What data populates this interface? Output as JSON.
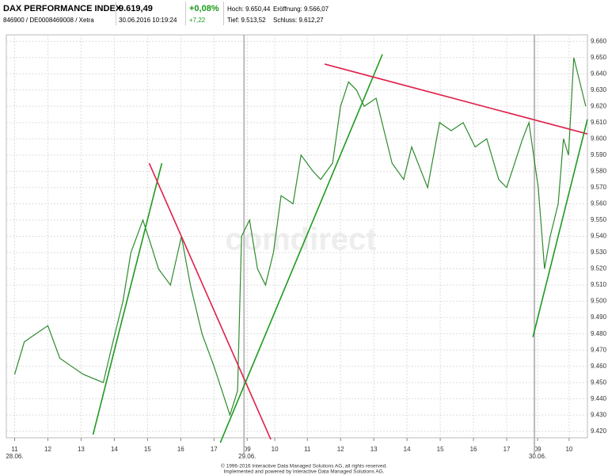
{
  "header": {
    "name": "DAX PERFORMANCE INDEX",
    "isin": "846900 / DE0008469008 / Xetra",
    "price": "9.619,49",
    "timestamp": "30.06.2016 10:19:24",
    "change_pct": "+0,08%",
    "change_abs": "+7,22",
    "high": "Hoch: 9.650,44",
    "open": "Eröffnung: 9.566,07",
    "low": "Tief: 9.513,52",
    "close": "Schluss: 9.612,27"
  },
  "chart_data": {
    "type": "line",
    "watermark": "comdirect",
    "footer": [
      "© 1996-2016 Interactive Data Managed Solutions AG, all rights reserved.",
      "Implemented and powered by Interactive Data Managed Solutions AG."
    ],
    "xlim": [
      -0.25,
      17.24
    ],
    "ylim": [
      9416,
      9664
    ],
    "xticks": [
      {
        "value": 0,
        "label": "11"
      },
      {
        "value": 1,
        "label": "12"
      },
      {
        "value": 2,
        "label": "13"
      },
      {
        "value": 3,
        "label": "14"
      },
      {
        "value": 4,
        "label": "15"
      },
      {
        "value": 5,
        "label": "16"
      },
      {
        "value": 6,
        "label": "17"
      },
      {
        "value": 7,
        "label": "09"
      },
      {
        "value": 7.83,
        "label": "10"
      },
      {
        "value": 8.81,
        "label": "11"
      },
      {
        "value": 9.81,
        "label": "12"
      },
      {
        "value": 10.81,
        "label": "13"
      },
      {
        "value": 11.81,
        "label": "14"
      },
      {
        "value": 12.81,
        "label": "15"
      },
      {
        "value": 13.81,
        "label": "16"
      },
      {
        "value": 14.81,
        "label": "17"
      },
      {
        "value": 15.74,
        "label": "09"
      },
      {
        "value": 16.69,
        "label": "10"
      }
    ],
    "date_labels": [
      {
        "value": 0,
        "label": "28.06."
      },
      {
        "value": 7,
        "label": "29.06."
      },
      {
        "value": 15.74,
        "label": "30.06."
      }
    ],
    "yticks": [
      {
        "value": 9420,
        "label": "9.420"
      },
      {
        "value": 9430,
        "label": "9.430"
      },
      {
        "value": 9440,
        "label": "9.440"
      },
      {
        "value": 9450,
        "label": "9.450"
      },
      {
        "value": 9460,
        "label": "9.460"
      },
      {
        "value": 9470,
        "label": "9.470"
      },
      {
        "value": 9480,
        "label": "9.480"
      },
      {
        "value": 9490,
        "label": "9.490"
      },
      {
        "value": 9500,
        "label": "9.500"
      },
      {
        "value": 9510,
        "label": "9.510"
      },
      {
        "value": 9520,
        "label": "9.520"
      },
      {
        "value": 9530,
        "label": "9.530"
      },
      {
        "value": 9540,
        "label": "9.540"
      },
      {
        "value": 9550,
        "label": "9.550"
      },
      {
        "value": 9560,
        "label": "9.560"
      },
      {
        "value": 9570,
        "label": "9.570"
      },
      {
        "value": 9580,
        "label": "9.580"
      },
      {
        "value": 9590,
        "label": "9.590"
      },
      {
        "value": 9600,
        "label": "9.600"
      },
      {
        "value": 9610,
        "label": "9.610"
      },
      {
        "value": 9620,
        "label": "9.620"
      },
      {
        "value": 9630,
        "label": "9.630"
      },
      {
        "value": 9640,
        "label": "9.640"
      },
      {
        "value": 9650,
        "label": "9.650"
      },
      {
        "value": 9660,
        "label": "9.660"
      }
    ],
    "grid": true,
    "series": [
      {
        "color": "#2e8b2e",
        "x": [
          0,
          0.29,
          0.64,
          1,
          1.36,
          1.71,
          2.07,
          2.67,
          2.9,
          3.26,
          3.5,
          3.86,
          4.1,
          4.33,
          4.69,
          5.02,
          5.29,
          5.64,
          6,
          6.24,
          6.48,
          6.71,
          6.83,
          7.07,
          7.31,
          7.55,
          7.79,
          8.02,
          8.38,
          8.62,
          8.98,
          9.21,
          9.57,
          9.81,
          10.05,
          10.29,
          10.52,
          10.88,
          11.12,
          11.36,
          11.71,
          11.95,
          12.43,
          12.79,
          13.14,
          13.5,
          13.86,
          14.21,
          14.57,
          14.81,
          15.05,
          15.29,
          15.48,
          15.76,
          15.95,
          16.12,
          16.36,
          16.52,
          16.67,
          16.83,
          16.95,
          17.19
        ],
        "values": [
          9455,
          9475,
          9480,
          9485,
          9465,
          9460,
          9455,
          9450,
          9470,
          9500,
          9530,
          9550,
          9535,
          9520,
          9510,
          9540,
          9510,
          9480,
          9460,
          9445,
          9430,
          9445,
          9540,
          9550,
          9520,
          9510,
          9530,
          9565,
          9560,
          9590,
          9580,
          9575,
          9585,
          9620,
          9635,
          9630,
          9620,
          9625,
          9605,
          9585,
          9575,
          9595,
          9570,
          9610,
          9605,
          9610,
          9595,
          9600,
          9575,
          9570,
          9585,
          9600,
          9610,
          9570,
          9520,
          9540,
          9560,
          9600,
          9590,
          9650,
          9640,
          9620
        ]
      }
    ],
    "trendlines": [
      {
        "color": "#1e9a1e",
        "x": [
          2.36,
          4.43
        ],
        "values": [
          9418,
          9585
        ]
      },
      {
        "color": "#e0204a",
        "x": [
          4.05,
          7.71
        ],
        "values": [
          9585,
          9415
        ]
      },
      {
        "color": "#1e9a1e",
        "x": [
          6.19,
          11.07
        ],
        "values": [
          9413,
          9652
        ]
      },
      {
        "color": "#e0204a",
        "x": [
          9.33,
          17.24
        ],
        "values": [
          9646,
          9603
        ]
      },
      {
        "color": "#1e9a1e",
        "x": [
          15.6,
          17.24
        ],
        "values": [
          9478,
          9612
        ]
      }
    ]
  }
}
